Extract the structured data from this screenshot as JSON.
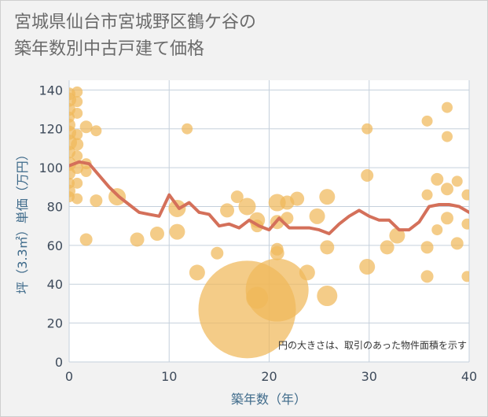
{
  "title_line1": "宮城県仙台市宮城野区鶴ケ谷の",
  "title_line2": "築年数別中古戸建て価格",
  "chart_data": {
    "type": "scatter",
    "title": "宮城県仙台市宮城野区鶴ケ谷の築年数別中古戸建て価格",
    "xlabel": "築年数（年）",
    "ylabel": "坪（3.3㎡）単価（万円）",
    "xlim": [
      0,
      40
    ],
    "ylim": [
      0,
      145
    ],
    "x_ticks": [
      0,
      10,
      20,
      30,
      40
    ],
    "y_ticks": [
      0,
      20,
      40,
      60,
      80,
      100,
      120,
      140
    ],
    "grid": true,
    "note": "円の大きさは、取引のあった物件面積を示す",
    "colors": {
      "bubble": "#f0b85a",
      "line": "#d4705a",
      "grid": "#c5d0dc",
      "plot_bg": "#ffffff"
    },
    "bubbles": [
      {
        "x": 0,
        "y": 138,
        "s": 8
      },
      {
        "x": 0,
        "y": 135,
        "s": 9
      },
      {
        "x": 0,
        "y": 130,
        "s": 8
      },
      {
        "x": 0,
        "y": 126,
        "s": 7
      },
      {
        "x": 0,
        "y": 122,
        "s": 8
      },
      {
        "x": 0,
        "y": 118,
        "s": 9
      },
      {
        "x": 0,
        "y": 113,
        "s": 10
      },
      {
        "x": 0,
        "y": 108,
        "s": 8
      },
      {
        "x": 0,
        "y": 102,
        "s": 9
      },
      {
        "x": 0,
        "y": 97,
        "s": 8
      },
      {
        "x": 0,
        "y": 92,
        "s": 7
      },
      {
        "x": 0,
        "y": 88,
        "s": 8
      },
      {
        "x": 0,
        "y": 85,
        "s": 7
      },
      {
        "x": 0.8,
        "y": 139,
        "s": 7
      },
      {
        "x": 0.8,
        "y": 134,
        "s": 7
      },
      {
        "x": 0.8,
        "y": 128,
        "s": 7
      },
      {
        "x": 0.8,
        "y": 117,
        "s": 7
      },
      {
        "x": 0.8,
        "y": 112,
        "s": 8
      },
      {
        "x": 0.8,
        "y": 106,
        "s": 7
      },
      {
        "x": 0.8,
        "y": 100,
        "s": 8
      },
      {
        "x": 0.8,
        "y": 92,
        "s": 7
      },
      {
        "x": 0.8,
        "y": 84,
        "s": 7
      },
      {
        "x": 1.7,
        "y": 121,
        "s": 8
      },
      {
        "x": 1.7,
        "y": 102,
        "s": 7
      },
      {
        "x": 1.7,
        "y": 98,
        "s": 7
      },
      {
        "x": 1.7,
        "y": 63,
        "s": 8
      },
      {
        "x": 2.7,
        "y": 119,
        "s": 7
      },
      {
        "x": 2.7,
        "y": 83,
        "s": 8
      },
      {
        "x": 4.8,
        "y": 85,
        "s": 11
      },
      {
        "x": 6.8,
        "y": 63,
        "s": 9
      },
      {
        "x": 8.8,
        "y": 66,
        "s": 9
      },
      {
        "x": 10.8,
        "y": 67,
        "s": 10
      },
      {
        "x": 10.8,
        "y": 79,
        "s": 11
      },
      {
        "x": 11.8,
        "y": 120,
        "s": 7
      },
      {
        "x": 12.8,
        "y": 46,
        "s": 10
      },
      {
        "x": 14.8,
        "y": 56,
        "s": 8
      },
      {
        "x": 15.8,
        "y": 78,
        "s": 9
      },
      {
        "x": 16.8,
        "y": 85,
        "s": 8
      },
      {
        "x": 17.8,
        "y": 80,
        "s": 11
      },
      {
        "x": 17.8,
        "y": 27,
        "s": 62
      },
      {
        "x": 18.8,
        "y": 73,
        "s": 10
      },
      {
        "x": 18.8,
        "y": 70,
        "s": 8
      },
      {
        "x": 18.8,
        "y": 33,
        "s": 14
      },
      {
        "x": 20.8,
        "y": 82,
        "s": 11
      },
      {
        "x": 20.8,
        "y": 72,
        "s": 9
      },
      {
        "x": 20.8,
        "y": 56,
        "s": 9
      },
      {
        "x": 20.8,
        "y": 58,
        "s": 8
      },
      {
        "x": 20.8,
        "y": 37,
        "s": 40
      },
      {
        "x": 21.8,
        "y": 82,
        "s": 9
      },
      {
        "x": 21.8,
        "y": 74,
        "s": 8
      },
      {
        "x": 22.8,
        "y": 84,
        "s": 9
      },
      {
        "x": 23.8,
        "y": 46,
        "s": 10
      },
      {
        "x": 24.8,
        "y": 75,
        "s": 10
      },
      {
        "x": 25.8,
        "y": 85,
        "s": 10
      },
      {
        "x": 25.8,
        "y": 59,
        "s": 9
      },
      {
        "x": 25.8,
        "y": 34,
        "s": 13
      },
      {
        "x": 29.8,
        "y": 120,
        "s": 7
      },
      {
        "x": 29.8,
        "y": 96,
        "s": 8
      },
      {
        "x": 29.8,
        "y": 49,
        "s": 10
      },
      {
        "x": 31.8,
        "y": 59,
        "s": 9
      },
      {
        "x": 32.8,
        "y": 65,
        "s": 10
      },
      {
        "x": 35.8,
        "y": 124,
        "s": 7
      },
      {
        "x": 35.8,
        "y": 86,
        "s": 7
      },
      {
        "x": 35.8,
        "y": 59,
        "s": 8
      },
      {
        "x": 35.8,
        "y": 44,
        "s": 8
      },
      {
        "x": 36.8,
        "y": 94,
        "s": 8
      },
      {
        "x": 36.8,
        "y": 68,
        "s": 7
      },
      {
        "x": 37.8,
        "y": 131,
        "s": 7
      },
      {
        "x": 37.8,
        "y": 116,
        "s": 7
      },
      {
        "x": 37.8,
        "y": 89,
        "s": 8
      },
      {
        "x": 37.8,
        "y": 74,
        "s": 8
      },
      {
        "x": 38.8,
        "y": 93,
        "s": 7
      },
      {
        "x": 38.8,
        "y": 61,
        "s": 8
      },
      {
        "x": 39.8,
        "y": 86,
        "s": 7
      },
      {
        "x": 39.8,
        "y": 71,
        "s": 7
      },
      {
        "x": 39.8,
        "y": 44,
        "s": 7
      }
    ],
    "trend": {
      "x": [
        0,
        1,
        2,
        3,
        4,
        5,
        6,
        7,
        8,
        9,
        10,
        11,
        12,
        13,
        14,
        15,
        16,
        17,
        18,
        19,
        20,
        21,
        22,
        23,
        24,
        25,
        26,
        27,
        28,
        29,
        30,
        31,
        32,
        33,
        34,
        35,
        36,
        37,
        38,
        39,
        40
      ],
      "y": [
        101,
        103,
        102,
        96,
        90,
        85,
        81,
        77,
        76,
        75,
        86,
        79,
        82,
        77,
        76,
        70,
        71,
        69,
        73,
        70,
        68,
        74,
        69,
        69,
        69,
        68,
        66,
        71,
        75,
        78,
        75,
        73,
        73,
        68,
        68,
        72,
        80,
        81,
        81,
        80,
        77
      ]
    }
  }
}
